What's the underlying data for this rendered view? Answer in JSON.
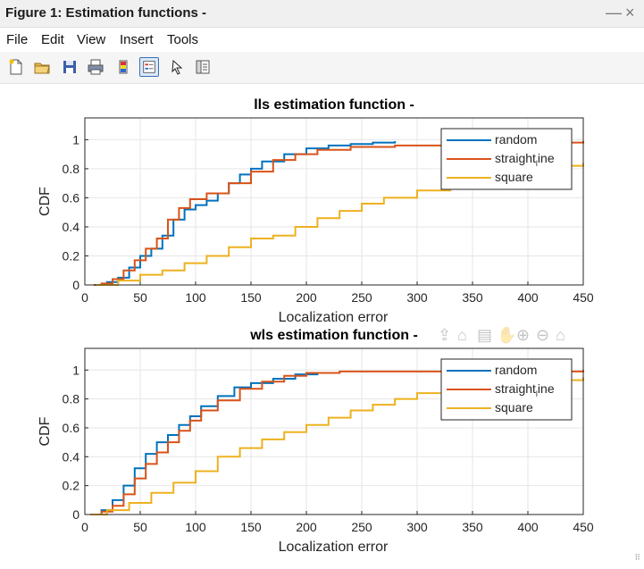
{
  "window": {
    "title": "Figure 1: Estimation functions -",
    "minimize": "—",
    "close": "×"
  },
  "menu": [
    "File",
    "Edit",
    "View",
    "Insert",
    "Tools"
  ],
  "toolbar": [
    {
      "name": "new-figure-icon"
    },
    {
      "name": "open-file-icon"
    },
    {
      "name": "save-icon"
    },
    {
      "name": "print-icon"
    },
    {
      "name": "colorbar-icon"
    },
    {
      "name": "legend-icon"
    },
    {
      "name": "pointer-icon"
    },
    {
      "name": "property-inspector-icon"
    }
  ],
  "axes_toolbar": [
    "export-icon",
    "brush-icon",
    "datatip-icon",
    "pan-icon",
    "zoom-in-icon",
    "zoom-out-icon",
    "home-icon"
  ],
  "colors": {
    "random": "#0072BD",
    "straight_line": "#D95319",
    "square": "#EDB120"
  },
  "chart_data": [
    {
      "type": "line",
      "title": "lls estimation function -",
      "xlabel": "Localization error",
      "ylabel": "CDF",
      "xlim": [
        0,
        450
      ],
      "ylim": [
        0,
        1.15
      ],
      "xticks": [
        0,
        50,
        100,
        150,
        200,
        250,
        300,
        350,
        400,
        450
      ],
      "yticks": [
        0,
        0.2,
        0.4,
        0.6,
        0.8,
        1
      ],
      "grid": true,
      "legend": "top-right",
      "series": [
        {
          "name": "random",
          "color": "#0072BD",
          "x": [
            10,
            20,
            30,
            40,
            50,
            60,
            70,
            80,
            90,
            100,
            110,
            120,
            130,
            140,
            150,
            160,
            180,
            200,
            220,
            240,
            260,
            280
          ],
          "y": [
            0,
            0.02,
            0.05,
            0.12,
            0.2,
            0.25,
            0.34,
            0.45,
            0.52,
            0.55,
            0.58,
            0.63,
            0.7,
            0.76,
            0.8,
            0.85,
            0.9,
            0.94,
            0.96,
            0.97,
            0.98,
            0.99
          ]
        },
        {
          "name": "straight_line",
          "color": "#D95319",
          "x": [
            8,
            15,
            25,
            35,
            45,
            55,
            65,
            75,
            85,
            95,
            110,
            130,
            150,
            170,
            190,
            210,
            240,
            280,
            330,
            400,
            450
          ],
          "y": [
            0,
            0.01,
            0.04,
            0.1,
            0.17,
            0.25,
            0.32,
            0.45,
            0.53,
            0.59,
            0.63,
            0.7,
            0.78,
            0.86,
            0.9,
            0.93,
            0.95,
            0.96,
            0.97,
            0.98,
            0.99
          ]
        },
        {
          "name": "square",
          "color": "#EDB120",
          "x": [
            10,
            30,
            50,
            70,
            90,
            110,
            130,
            150,
            170,
            190,
            210,
            230,
            250,
            270,
            300,
            330,
            360,
            400,
            430,
            450
          ],
          "y": [
            0,
            0.03,
            0.07,
            0.1,
            0.15,
            0.2,
            0.26,
            0.32,
            0.34,
            0.4,
            0.46,
            0.51,
            0.56,
            0.6,
            0.65,
            0.69,
            0.73,
            0.78,
            0.82,
            0.84
          ]
        }
      ]
    },
    {
      "type": "line",
      "title": "wls estimation function -",
      "xlabel": "Localization error",
      "ylabel": "CDF",
      "xlim": [
        0,
        450
      ],
      "ylim": [
        0,
        1.15
      ],
      "xticks": [
        0,
        50,
        100,
        150,
        200,
        250,
        300,
        350,
        400,
        450
      ],
      "yticks": [
        0,
        0.2,
        0.4,
        0.6,
        0.8,
        1
      ],
      "grid": true,
      "legend": "top-right",
      "series": [
        {
          "name": "random",
          "color": "#0072BD",
          "x": [
            5,
            15,
            25,
            35,
            45,
            55,
            65,
            75,
            85,
            95,
            105,
            120,
            135,
            150,
            170,
            190,
            210,
            230
          ],
          "y": [
            0,
            0.03,
            0.1,
            0.2,
            0.32,
            0.42,
            0.5,
            0.55,
            0.62,
            0.68,
            0.75,
            0.82,
            0.88,
            0.91,
            0.94,
            0.97,
            0.98,
            0.99
          ]
        },
        {
          "name": "straight_line",
          "color": "#D95319",
          "x": [
            5,
            15,
            25,
            35,
            45,
            55,
            65,
            75,
            85,
            95,
            105,
            120,
            140,
            160,
            180,
            200,
            230,
            280,
            350,
            400,
            450
          ],
          "y": [
            0,
            0.02,
            0.06,
            0.14,
            0.25,
            0.35,
            0.43,
            0.5,
            0.58,
            0.65,
            0.72,
            0.79,
            0.87,
            0.92,
            0.96,
            0.98,
            0.99,
            0.99,
            0.99,
            0.99,
            1.0
          ]
        },
        {
          "name": "square",
          "color": "#EDB120",
          "x": [
            5,
            20,
            40,
            60,
            80,
            100,
            120,
            140,
            160,
            180,
            200,
            220,
            240,
            260,
            280,
            300,
            330,
            360,
            400,
            430,
            450
          ],
          "y": [
            0,
            0.03,
            0.08,
            0.15,
            0.22,
            0.3,
            0.4,
            0.46,
            0.52,
            0.57,
            0.62,
            0.67,
            0.72,
            0.76,
            0.8,
            0.84,
            0.86,
            0.88,
            0.9,
            0.93,
            0.95
          ]
        }
      ]
    }
  ]
}
